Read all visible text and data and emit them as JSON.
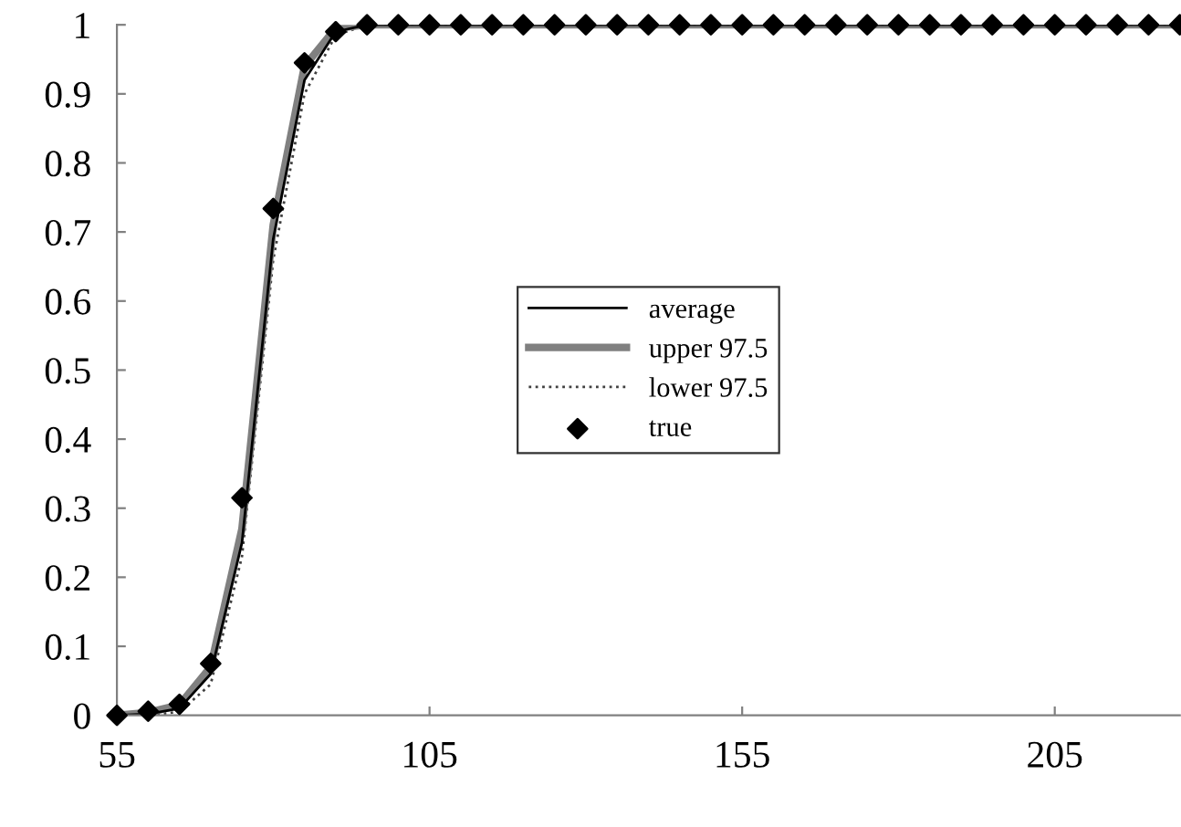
{
  "chart_data": {
    "type": "line",
    "x": [
      55,
      60,
      65,
      70,
      75,
      80,
      85,
      90,
      95,
      100,
      105,
      110,
      115,
      120,
      125,
      130,
      135,
      140,
      145,
      150,
      155,
      160,
      165,
      170,
      175,
      180,
      185,
      190,
      195,
      200,
      205,
      210,
      215,
      220,
      225
    ],
    "series": [
      {
        "name": "average",
        "color": "#000000",
        "line_style": "solid",
        "marker": "none",
        "values": [
          0,
          0.002,
          0.01,
          0.06,
          0.25,
          0.69,
          0.92,
          0.99,
          1,
          1,
          1,
          1,
          1,
          1,
          1,
          1,
          1,
          1,
          1,
          1,
          1,
          1,
          1,
          1,
          1,
          1,
          1,
          1,
          1,
          1,
          1,
          1,
          1,
          1,
          1
        ]
      },
      {
        "name": "upper 97.5",
        "color": "#808080",
        "line_style": "solid",
        "marker": "none",
        "values": [
          0,
          0.004,
          0.015,
          0.07,
          0.27,
          0.71,
          0.94,
          0.995,
          1,
          1,
          1,
          1,
          1,
          1,
          1,
          1,
          1,
          1,
          1,
          1,
          1,
          1,
          1,
          1,
          1,
          1,
          1,
          1,
          1,
          1,
          1,
          1,
          1,
          1,
          1
        ]
      },
      {
        "name": "lower 97.5",
        "color": "#404040",
        "line_style": "dotted",
        "marker": "none",
        "values": [
          0,
          0,
          0.005,
          0.045,
          0.23,
          0.66,
          0.9,
          0.985,
          1,
          1,
          1,
          1,
          1,
          1,
          1,
          1,
          1,
          1,
          1,
          1,
          1,
          1,
          1,
          1,
          1,
          1,
          1,
          1,
          1,
          1,
          1,
          1,
          1,
          1,
          1
        ]
      },
      {
        "name": "true",
        "type": "scatter",
        "color": "#000000",
        "marker": "diamond",
        "values": [
          0,
          0.006,
          0.016,
          0.075,
          0.315,
          0.734,
          0.945,
          0.99,
          1,
          1,
          1,
          1,
          1,
          1,
          1,
          1,
          1,
          1,
          1,
          1,
          1,
          1,
          1,
          1,
          1,
          1,
          1,
          1,
          1,
          1,
          1,
          1,
          1,
          1,
          1
        ]
      }
    ],
    "xlim": [
      55,
      225
    ],
    "xticks": [
      55,
      105,
      155,
      205
    ],
    "ylim": [
      0,
      1
    ],
    "yticks": [
      0,
      0.1,
      0.2,
      0.3,
      0.4,
      0.5,
      0.6,
      0.7,
      0.8,
      0.9,
      1
    ],
    "grid": false,
    "legend": "center"
  }
}
